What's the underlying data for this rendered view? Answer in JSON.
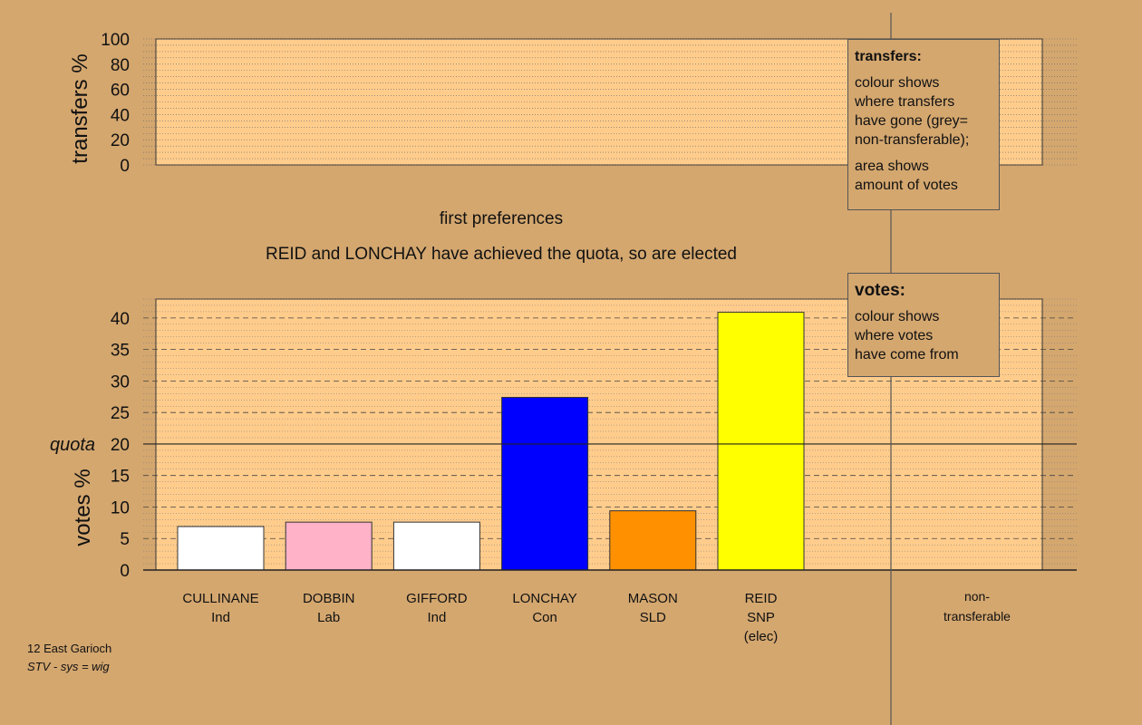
{
  "chart_data": [
    {
      "type": "bar",
      "ylabel": "transfers %",
      "ylim": [
        0,
        100
      ],
      "yticks": [
        0,
        20,
        40,
        60,
        80,
        100
      ],
      "series": []
    },
    {
      "type": "bar",
      "xlabel": "first preferences",
      "ylabel": "votes %",
      "ylim": [
        0,
        43
      ],
      "yticks": [
        0,
        5,
        10,
        15,
        20,
        25,
        30,
        35,
        40
      ],
      "quota": 20,
      "quota_label": "quota",
      "grid": true,
      "categories": [
        {
          "name": "CULLINANE",
          "party": "Ind",
          "note": "",
          "color": "#ffffff"
        },
        {
          "name": "DOBBIN",
          "party": "Lab",
          "note": "",
          "color": "#ffb2c8"
        },
        {
          "name": "GIFFORD",
          "party": "Ind",
          "note": "",
          "color": "#ffffff"
        },
        {
          "name": "LONCHAY",
          "party": "Con",
          "note": "",
          "color": "#0000ff"
        },
        {
          "name": "MASON",
          "party": "SLD",
          "note": "",
          "color": "#ff9000"
        },
        {
          "name": "REID",
          "party": "SNP",
          "note": "(elec)",
          "color": "#ffff00"
        }
      ],
      "values": [
        6.9,
        7.6,
        7.6,
        27.4,
        9.4,
        40.9
      ],
      "extra_category": [
        "non-",
        "transferable"
      ]
    }
  ],
  "stage_title": "REID and LONCHAY have achieved the quota, so are elected",
  "legend_transfers": {
    "heading": "transfers:",
    "line1": "colour shows",
    "line2": "where transfers",
    "line3": "have gone (grey=",
    "line4": "non-transferable);",
    "line5": "area shows",
    "line6": "amount of votes"
  },
  "legend_votes": {
    "heading": "votes:",
    "line1": "colour shows",
    "line2": "where votes",
    "line3": "have come from"
  },
  "footer": {
    "ward": "12 East Garioch",
    "system": "STV - sys = wig"
  },
  "colors": {
    "background": "#d4a76f",
    "plot_fill": "#ffcc8c",
    "grid": "#555555",
    "axis": "#222222"
  }
}
